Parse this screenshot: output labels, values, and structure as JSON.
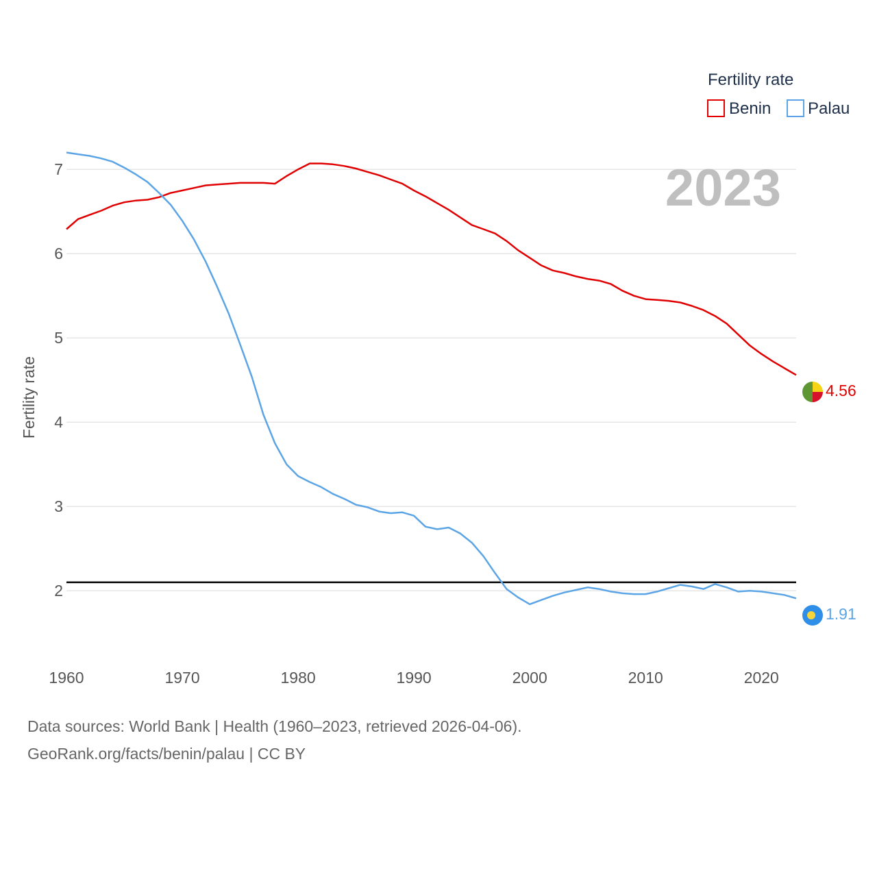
{
  "chart_data": {
    "type": "line",
    "title": "Fertility rate",
    "ylabel": "Fertility rate",
    "xlabel": "",
    "highlight_year": "2023",
    "xlim": [
      1960,
      2023
    ],
    "ylim": [
      1.4,
      7.4
    ],
    "x_ticks": [
      1960,
      1970,
      1980,
      1990,
      2000,
      2010,
      2020
    ],
    "y_ticks": [
      2,
      3,
      4,
      5,
      6,
      7
    ],
    "grid": true,
    "legend_position": "top-right",
    "reference_line": {
      "value": 2.1,
      "color": "#000000"
    },
    "series": [
      {
        "name": "Benin",
        "color": "#e00000",
        "end_label": "4.56",
        "x": [
          1960,
          1961,
          1962,
          1963,
          1964,
          1965,
          1966,
          1967,
          1968,
          1969,
          1970,
          1971,
          1972,
          1973,
          1974,
          1975,
          1976,
          1977,
          1978,
          1979,
          1980,
          1981,
          1982,
          1983,
          1984,
          1985,
          1986,
          1987,
          1988,
          1989,
          1990,
          1991,
          1992,
          1993,
          1994,
          1995,
          1996,
          1997,
          1998,
          1999,
          2000,
          2001,
          2002,
          2003,
          2004,
          2005,
          2006,
          2007,
          2008,
          2009,
          2010,
          2011,
          2012,
          2013,
          2014,
          2015,
          2016,
          2017,
          2018,
          2019,
          2020,
          2021,
          2022,
          2023
        ],
        "values": [
          6.29,
          6.41,
          6.46,
          6.51,
          6.57,
          6.61,
          6.63,
          6.64,
          6.67,
          6.72,
          6.75,
          6.78,
          6.81,
          6.82,
          6.83,
          6.84,
          6.84,
          6.84,
          6.83,
          6.92,
          7.0,
          7.07,
          7.07,
          7.06,
          7.04,
          7.01,
          6.97,
          6.93,
          6.88,
          6.83,
          6.75,
          6.68,
          6.6,
          6.52,
          6.43,
          6.34,
          6.29,
          6.24,
          6.15,
          6.04,
          5.95,
          5.86,
          5.8,
          5.77,
          5.73,
          5.7,
          5.68,
          5.64,
          5.56,
          5.5,
          5.46,
          5.45,
          5.44,
          5.42,
          5.38,
          5.33,
          5.26,
          5.17,
          5.04,
          4.91,
          4.81,
          4.72,
          4.64,
          4.56
        ]
      },
      {
        "name": "Palau",
        "color": "#5ba4e5",
        "end_label": "1.91",
        "x": [
          1960,
          1961,
          1962,
          1963,
          1964,
          1965,
          1966,
          1967,
          1968,
          1969,
          1970,
          1971,
          1972,
          1973,
          1974,
          1975,
          1976,
          1977,
          1978,
          1979,
          1980,
          1981,
          1982,
          1983,
          1984,
          1985,
          1986,
          1987,
          1988,
          1989,
          1990,
          1991,
          1992,
          1993,
          1994,
          1995,
          1996,
          1997,
          1998,
          1999,
          2000,
          2001,
          2002,
          2003,
          2004,
          2005,
          2006,
          2007,
          2008,
          2009,
          2010,
          2011,
          2012,
          2013,
          2014,
          2015,
          2016,
          2017,
          2018,
          2019,
          2020,
          2021,
          2022,
          2023
        ],
        "values": [
          7.2,
          7.18,
          7.16,
          7.13,
          7.09,
          7.02,
          6.94,
          6.85,
          6.72,
          6.58,
          6.39,
          6.17,
          5.91,
          5.61,
          5.29,
          4.92,
          4.54,
          4.09,
          3.75,
          3.5,
          3.36,
          3.29,
          3.23,
          3.15,
          3.09,
          3.02,
          2.99,
          2.94,
          2.92,
          2.93,
          2.89,
          2.76,
          2.73,
          2.75,
          2.68,
          2.57,
          2.41,
          2.21,
          2.02,
          1.92,
          1.84,
          1.89,
          1.94,
          1.98,
          2.01,
          2.04,
          2.02,
          1.99,
          1.97,
          1.96,
          1.96,
          1.99,
          2.03,
          2.07,
          2.05,
          2.02,
          2.08,
          2.04,
          1.99,
          2.0,
          1.99,
          1.97,
          1.95,
          1.91
        ]
      }
    ]
  },
  "footer": {
    "line1": "Data sources: World Bank | Health (1960–2023, retrieved 2026-04-06).",
    "line2": "GeoRank.org/facts/benin/palau | CC BY"
  }
}
